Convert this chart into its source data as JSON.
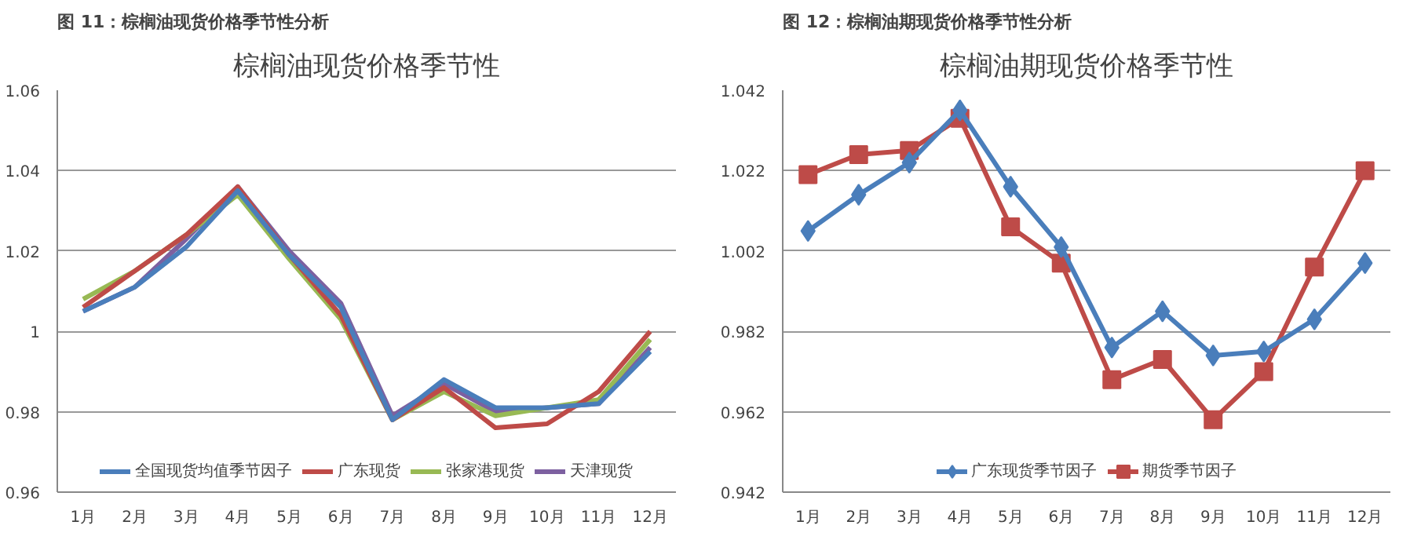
{
  "chart_data": [
    {
      "type": "line",
      "title": "图 11：棕榈油现货价格季节性分析",
      "subtitle": "棕榈油现货价格季节性",
      "categories": [
        "1月",
        "2月",
        "3月",
        "4月",
        "5月",
        "6月",
        "7月",
        "8月",
        "9月",
        "10月",
        "11月",
        "12月"
      ],
      "series": [
        {
          "name": "全国现货均值季节因子",
          "color": "#4a7ebb",
          "values": [
            1.005,
            1.011,
            1.021,
            1.035,
            1.019,
            1.006,
            0.978,
            0.988,
            0.981,
            0.981,
            0.982,
            0.995
          ]
        },
        {
          "name": "广东现货",
          "color": "#be4b48",
          "values": [
            1.006,
            1.015,
            1.024,
            1.036,
            1.019,
            1.004,
            0.978,
            0.986,
            0.976,
            0.977,
            0.985,
            1.0
          ]
        },
        {
          "name": "张家港现货",
          "color": "#98b954",
          "values": [
            1.008,
            1.015,
            1.024,
            1.034,
            1.018,
            1.003,
            0.978,
            0.985,
            0.979,
            0.981,
            0.983,
            0.998
          ]
        },
        {
          "name": "天津现货",
          "color": "#7d60a0",
          "values": [
            1.005,
            1.011,
            1.023,
            1.036,
            1.02,
            1.007,
            0.979,
            0.987,
            0.98,
            0.981,
            0.982,
            0.996
          ]
        }
      ],
      "ylim": [
        0.96,
        1.06
      ],
      "yticks": [
        0.96,
        0.98,
        1,
        1.02,
        1.04,
        1.06
      ],
      "grid": "y",
      "legend": "bottom",
      "marker": "none",
      "line_style": "solid"
    },
    {
      "type": "line",
      "title": "图 12：棕榈油期现货价格季节性分析",
      "subtitle": "棕榈油期现货价格季节性",
      "categories": [
        "1月",
        "2月",
        "3月",
        "4月",
        "5月",
        "6月",
        "7月",
        "8月",
        "9月",
        "10月",
        "11月",
        "12月"
      ],
      "series": [
        {
          "name": "广东现货季节因子",
          "color": "#4a7ebb",
          "marker": "diamond",
          "values": [
            1.007,
            1.016,
            1.024,
            1.037,
            1.018,
            1.003,
            0.978,
            0.987,
            0.976,
            0.977,
            0.985,
            0.999
          ]
        },
        {
          "name": "期货季节因子",
          "color": "#be4b48",
          "marker": "square",
          "values": [
            1.021,
            1.026,
            1.027,
            1.035,
            1.008,
            0.999,
            0.97,
            0.975,
            0.96,
            0.972,
            0.998,
            1.022
          ]
        }
      ],
      "ylim": [
        0.942,
        1.042
      ],
      "yticks": [
        0.942,
        0.962,
        0.982,
        1.002,
        1.022,
        1.042
      ],
      "grid": "y",
      "legend": "bottom",
      "line_style": "solid"
    }
  ]
}
